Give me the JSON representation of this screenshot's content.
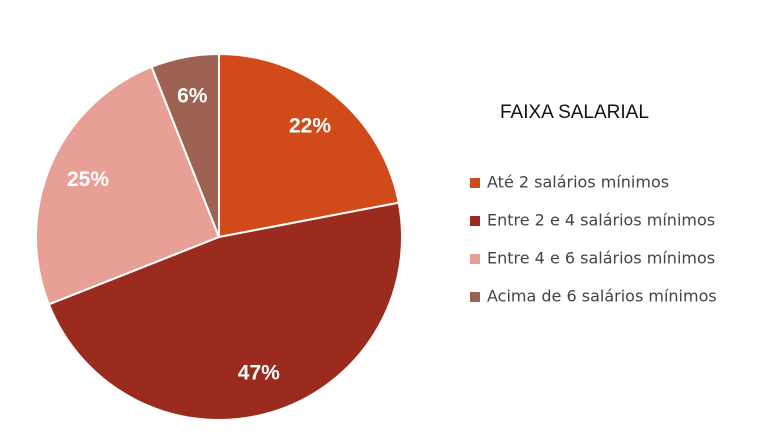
{
  "chart_data": {
    "type": "pie",
    "legend_title": "FAIXA SALARIAL",
    "categories": [
      "Até 2 salários mínimos",
      "Entre 2 e 4 salários mínimos",
      "Entre 4 e 6 salários mínimos",
      "Acima de 6 salários mínimos"
    ],
    "values": [
      22,
      47,
      25,
      6
    ],
    "value_labels": [
      "22%",
      "47%",
      "25%",
      "6%"
    ],
    "colors": [
      "#d04a1a",
      "#9b2b1e",
      "#e8a096",
      "#9d6252"
    ],
    "legend": "right"
  }
}
